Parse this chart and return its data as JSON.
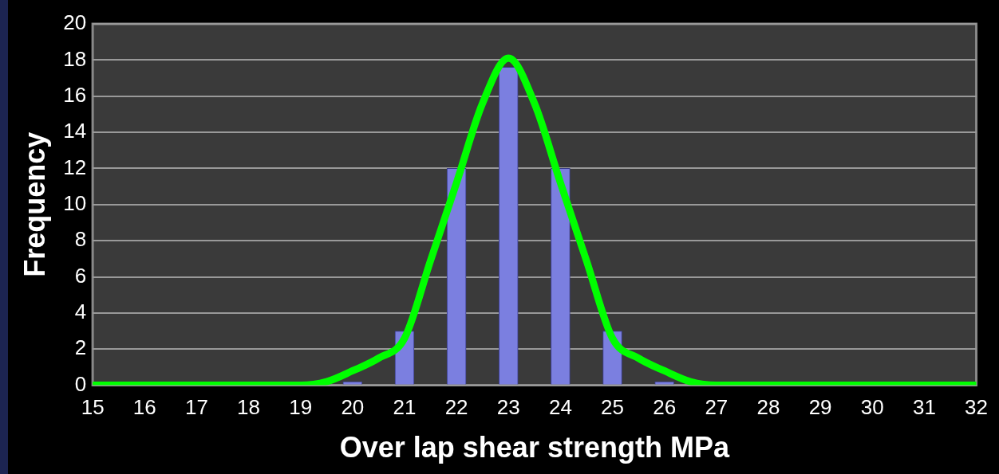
{
  "chart_data": {
    "type": "bar",
    "xlabel": "Over lap shear strength MPa",
    "ylabel": "Frequency",
    "x": [
      15,
      16,
      17,
      18,
      19,
      20,
      21,
      22,
      23,
      24,
      25,
      26,
      27,
      28,
      29,
      30,
      31,
      32
    ],
    "xlim": [
      15,
      32
    ],
    "xticks": [
      15,
      16,
      17,
      18,
      19,
      20,
      21,
      22,
      23,
      24,
      25,
      26,
      27,
      28,
      29,
      30,
      31,
      32
    ],
    "ylim": [
      0,
      20
    ],
    "yticks": [
      0,
      2,
      4,
      6,
      8,
      10,
      12,
      14,
      16,
      18,
      20
    ],
    "grid": "y",
    "legend": false,
    "series": [
      {
        "color": "#7b7fe0",
        "values": [
          0,
          0,
          0,
          0,
          0,
          0.2,
          3,
          12,
          17.6,
          12,
          3,
          0.2,
          0,
          0,
          0,
          0,
          0,
          0
        ]
      },
      {
        "type": "line",
        "color": "#00ff00",
        "marker": "none",
        "x": [
          15,
          18,
          19,
          19.5,
          20,
          20.5,
          21,
          21.5,
          22,
          22.5,
          23,
          23.5,
          24,
          24.5,
          25,
          25.5,
          26,
          26.5,
          27,
          28,
          32
        ],
        "values": [
          0,
          0,
          0,
          0.2,
          0.8,
          1.5,
          2.6,
          6.9,
          11.2,
          15.6,
          18.1,
          15.6,
          11.2,
          6.9,
          2.6,
          1.5,
          0.8,
          0.2,
          0,
          0,
          0
        ]
      }
    ]
  }
}
